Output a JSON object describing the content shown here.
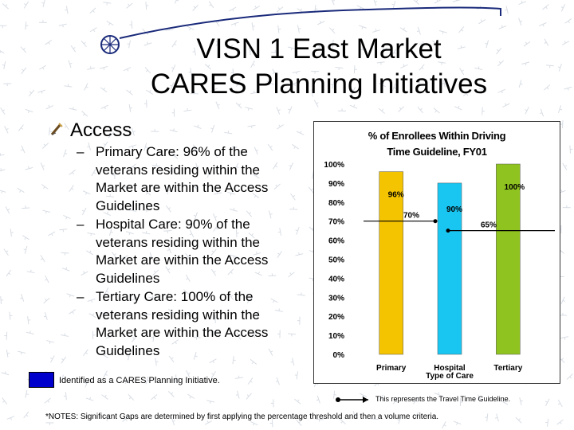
{
  "slide": {
    "title_line1": "VISN 1 East Market",
    "title_line2": "CARES Planning Initiatives",
    "bullet": "Access",
    "sub_items": [
      {
        "dash": "–",
        "text": "Primary Care: 96% of the veterans residing within the Market are within the Access Guidelines"
      },
      {
        "dash": "–",
        "text": "Hospital Care: 90% of the veterans residing within the Market are within the Access Guidelines"
      },
      {
        "dash": "–",
        "text": "Tertiary Care: 100% of the veterans residing within the Market are within the Access Guidelines"
      }
    ],
    "legend_text": "Identified as a CARES Planning Initiative.",
    "guideline_note": "This represents the Travel Time Guideline.",
    "notes": "*NOTES:  Significant Gaps are determined by first applying the percentage threshold and then a volume criteria.",
    "legend_color": "#0000cc"
  },
  "chart_data": {
    "type": "bar",
    "title_line1": "% of Enrollees Within Driving",
    "title_line2": "Time Guideline, FY01",
    "categories": [
      "Primary",
      "Hospital",
      "Tertiary"
    ],
    "values": [
      96,
      90,
      100
    ],
    "value_labels": [
      "96%",
      "90%",
      "100%"
    ],
    "colors": [
      "#f5c400",
      "#19c6f2",
      "#8fc31f"
    ],
    "guidelines": [
      {
        "category": "Primary",
        "value": 70,
        "label": "70%"
      },
      {
        "category": "Tertiary",
        "value": 65,
        "label": "65%"
      }
    ],
    "xlabel": "Type of Care",
    "ylim": [
      0,
      100
    ],
    "yticks": [
      "0%",
      "10%",
      "20%",
      "30%",
      "40%",
      "50%",
      "60%",
      "70%",
      "80%",
      "90%",
      "100%"
    ],
    "grid": false
  }
}
